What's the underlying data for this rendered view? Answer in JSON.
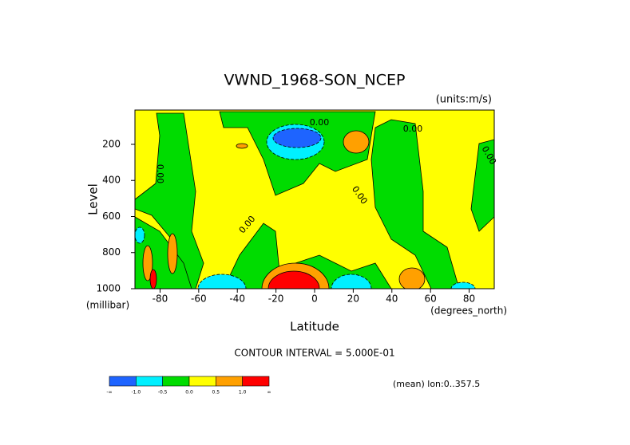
{
  "chart_data": {
    "type": "contour",
    "title": "VWND_1968-SON_NCEP",
    "units_label": "(units:m/s)",
    "y_label": "Level",
    "y_unit_label": "(millibar)",
    "x_label": "Latitude",
    "x_unit_label": "(degrees_north)",
    "contour_interval_label": "CONTOUR INTERVAL = 5.000E-01",
    "mean_label": "(mean) lon:0..357.5",
    "xlim": [
      -93,
      93
    ],
    "ylim": [
      1000,
      10
    ],
    "xticks": [
      -80,
      -60,
      -40,
      -20,
      0,
      20,
      40,
      60,
      80
    ],
    "yticks": [
      200,
      400,
      600,
      800,
      1000
    ],
    "contour_labels": [
      "0.00",
      "0.00",
      "0.00",
      "0.00",
      "0.00",
      "0.00"
    ],
    "colorbar": {
      "colors": [
        "#1e64ff",
        "#00f0ff",
        "#00dc00",
        "#ffff00",
        "#ffa000",
        "#ff0000"
      ],
      "levels": [
        {
          "value": -1,
          "label": "-1.0"
        },
        -0.5,
        {
          "value": 0,
          "label": "0.0"
        },
        0.5,
        {
          "value": 1,
          "label": "1.0"
        }
      ],
      "ends": [
        "-∞",
        "∞"
      ]
    }
  }
}
